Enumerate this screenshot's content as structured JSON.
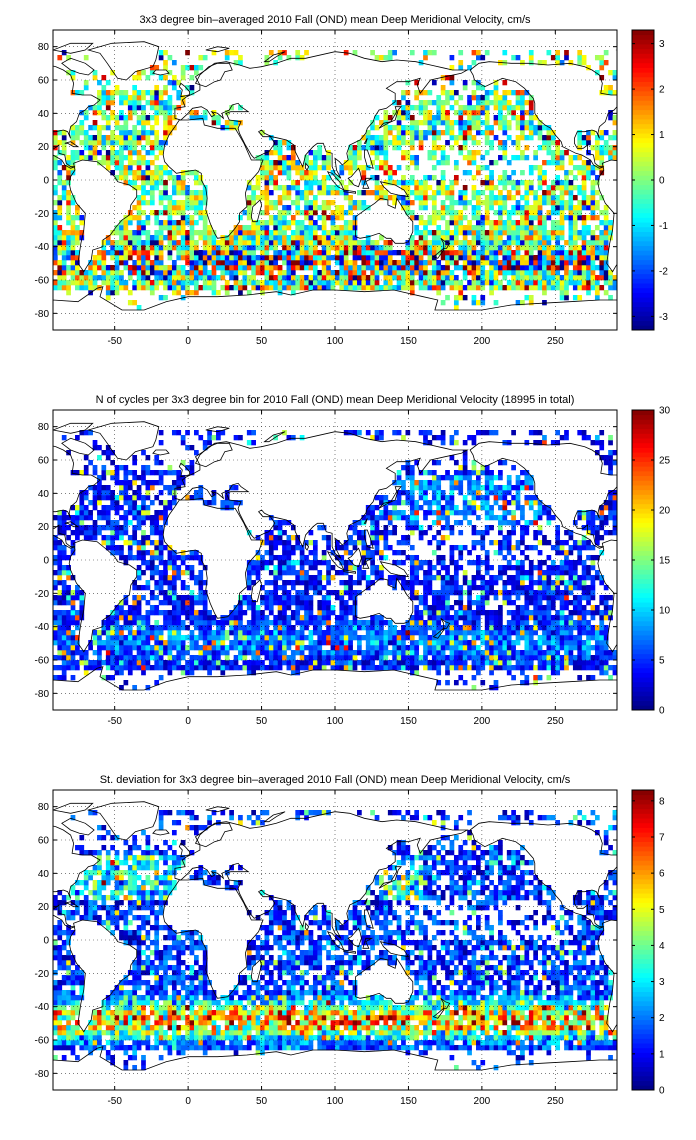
{
  "chart_data": [
    {
      "type": "heatmap",
      "title": "3x3 degree bin–averaged 2010 Fall (OND) mean Deep Meridional Velocity, cm/s",
      "xlabel": "",
      "ylabel": "",
      "xlim": [
        -92,
        292
      ],
      "ylim": [
        -90,
        90
      ],
      "xticks": [
        -50,
        0,
        50,
        100,
        150,
        200,
        250
      ],
      "yticks": [
        80,
        60,
        40,
        20,
        0,
        -20,
        -40,
        -60,
        -80
      ],
      "grid": true,
      "colormap": "jet",
      "colorbar": {
        "min": -3.3,
        "max": 3.3,
        "ticks": [
          3,
          2,
          1,
          0,
          -1,
          -2,
          -3
        ]
      },
      "field": "velocity",
      "bin_deg": 3,
      "seed": 11
    },
    {
      "type": "heatmap",
      "title": "N of cycles per 3x3 degree bin for 2010 Fall (OND) mean Deep Meridional Velocity (18995 in total)",
      "xlabel": "",
      "ylabel": "",
      "xlim": [
        -92,
        292
      ],
      "ylim": [
        -90,
        90
      ],
      "xticks": [
        -50,
        0,
        50,
        100,
        150,
        200,
        250
      ],
      "yticks": [
        80,
        60,
        40,
        20,
        0,
        -20,
        -40,
        -60,
        -80
      ],
      "grid": true,
      "colormap": "jet",
      "colorbar": {
        "min": 0,
        "max": 30,
        "ticks": [
          30,
          25,
          20,
          15,
          10,
          5,
          0
        ]
      },
      "field": "count",
      "bin_deg": 3,
      "seed": 23
    },
    {
      "type": "heatmap",
      "title": "St. deviation for 3x3 degree bin–averaged 2010 Fall (OND) mean Deep Meridional Velocity, cm/s",
      "xlabel": "",
      "ylabel": "",
      "xlim": [
        -92,
        292
      ],
      "ylim": [
        -90,
        90
      ],
      "xticks": [
        -50,
        0,
        50,
        100,
        150,
        200,
        250
      ],
      "yticks": [
        80,
        60,
        40,
        20,
        0,
        -20,
        -40,
        -60,
        -80
      ],
      "grid": true,
      "colormap": "jet",
      "colorbar": {
        "min": 0,
        "max": 8.3,
        "ticks": [
          8,
          7,
          6,
          5,
          4,
          3,
          2,
          1,
          0
        ]
      },
      "field": "stddev",
      "bin_deg": 3,
      "seed": 37
    }
  ]
}
